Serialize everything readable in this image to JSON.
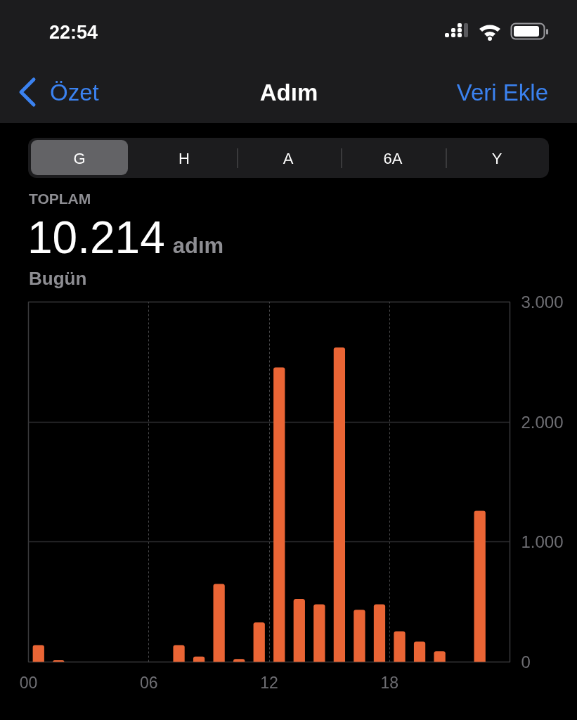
{
  "chart_data": {
    "type": "bar",
    "title": "Adım",
    "annotations": [
      "22:54",
      "Özet",
      "Veri Ekle",
      "G",
      "H",
      "A",
      "6A",
      "Y",
      "TOPLAM",
      "10.214",
      "adım",
      "Bugün"
    ],
    "x": [
      0.5,
      1.5,
      2.5,
      3.5,
      4.5,
      5.5,
      6.5,
      7.5,
      8.5,
      9.5,
      10.5,
      11.5,
      12.5,
      13.5,
      14.5,
      15.5,
      16.5,
      17.5,
      18.5,
      19.5,
      20.5,
      21.5,
      22.5
    ],
    "values": [
      140,
      15,
      null,
      null,
      null,
      null,
      null,
      140,
      45,
      650,
      25,
      330,
      2455,
      525,
      480,
      2620,
      435,
      480,
      255,
      170,
      90,
      null,
      1260
    ],
    "color": "#ea6535",
    "xlim": [
      0,
      24
    ],
    "xticks": [
      {
        "value": 0,
        "label": "00"
      },
      {
        "value": 6,
        "label": "06"
      },
      {
        "value": 12,
        "label": "12"
      },
      {
        "value": 18,
        "label": "18"
      }
    ],
    "ylim": [
      0,
      3000
    ],
    "yticks": [
      0,
      {
        "value": 1000,
        "label": "1.000"
      },
      {
        "value": 2000,
        "label": "2.000"
      },
      {
        "value": 3000,
        "label": "3.000"
      }
    ],
    "grid": true
  }
}
